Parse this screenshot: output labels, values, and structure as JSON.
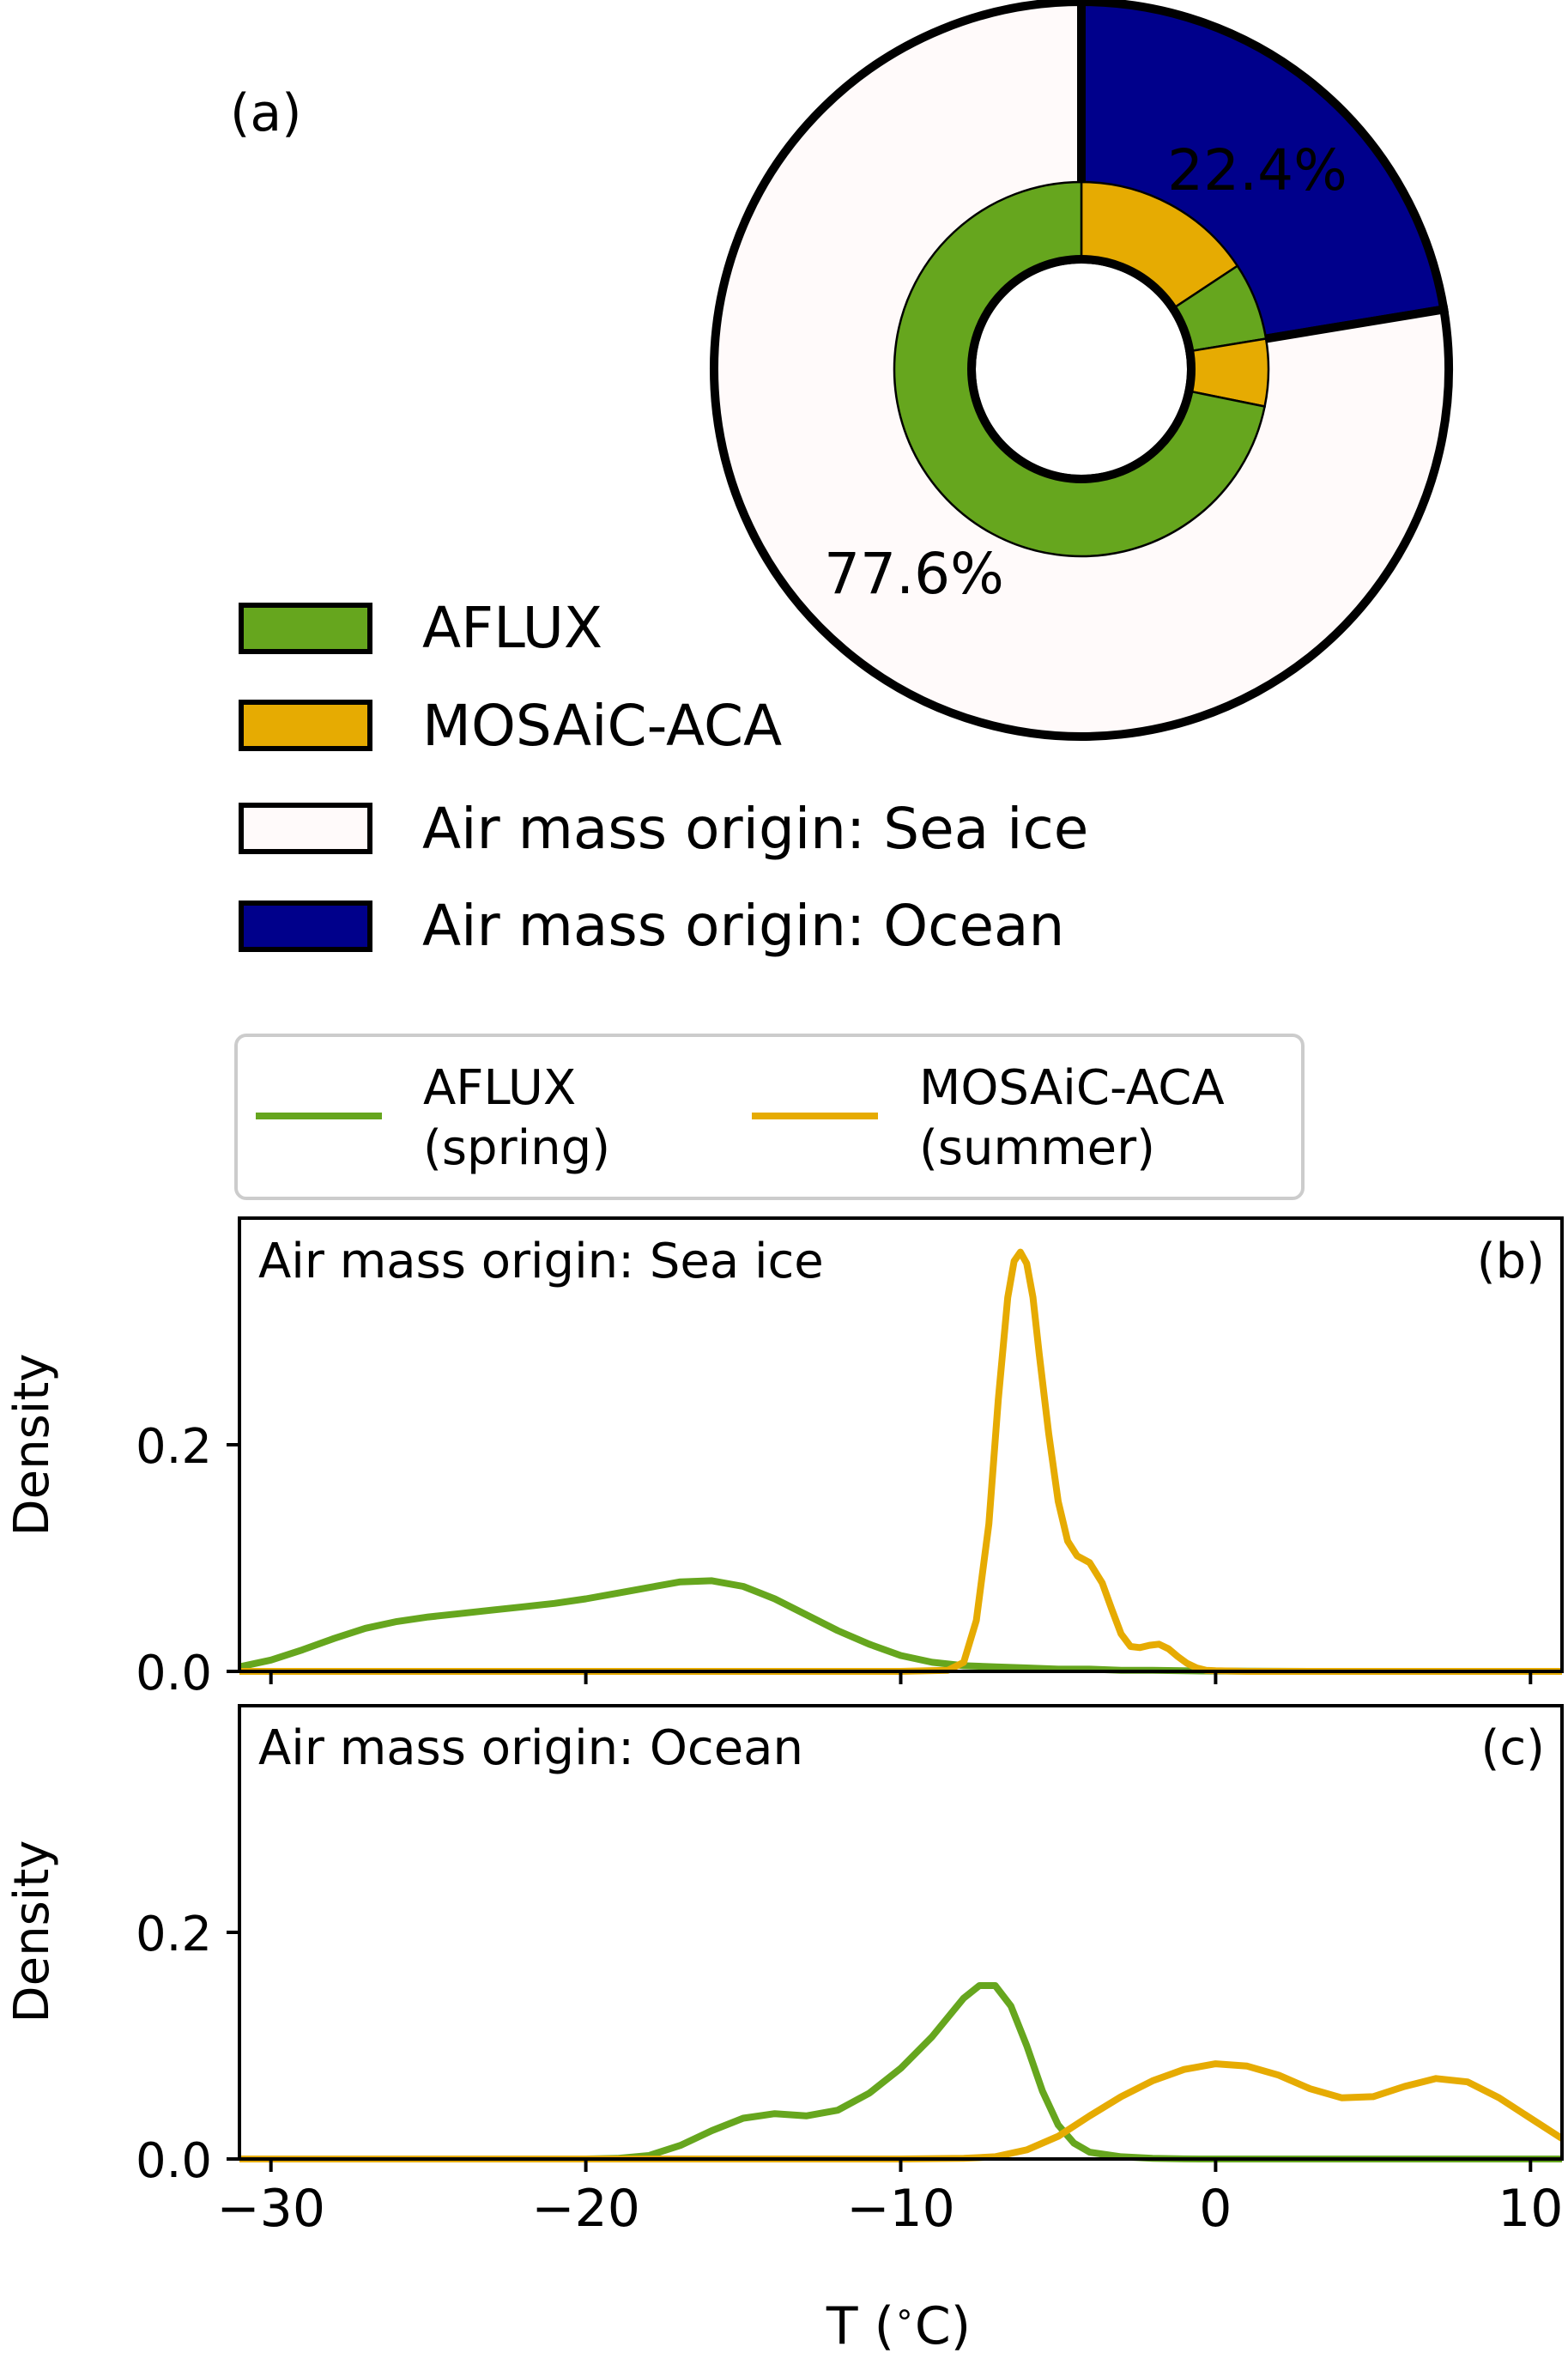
{
  "colors": {
    "aflux": "#66a61e",
    "mosaic": "#e6ab02",
    "sea_ice": "#fffafa",
    "ocean": "#00008b",
    "ocean_text": "#00008b",
    "frame": "#000000"
  },
  "chart_data": [
    {
      "type": "pie",
      "panel_label": "(a)",
      "outer_ring": {
        "slices": [
          {
            "label": "Air mass origin: Ocean",
            "value": 22.4,
            "pct_label": "22.4%",
            "color": "#00008b",
            "pct_color": "#ffffff"
          },
          {
            "label": "Air mass origin: Sea ice",
            "value": 77.6,
            "pct_label": "77.6%",
            "color": "#fffafa",
            "pct_color": "#00008b"
          }
        ]
      },
      "inner_ring": {
        "slices": [
          {
            "campaign": "MOSAiC-ACA",
            "origin": "Ocean",
            "value": 15.7,
            "color": "#e6ab02"
          },
          {
            "campaign": "AFLUX",
            "origin": "Ocean",
            "value": 6.7,
            "color": "#66a61e"
          },
          {
            "campaign": "MOSAiC-ACA",
            "origin": "Sea ice",
            "value": 5.8,
            "color": "#e6ab02"
          },
          {
            "campaign": "AFLUX",
            "origin": "Sea ice",
            "value": 71.8,
            "color": "#66a61e"
          }
        ]
      },
      "legend": [
        {
          "label": "AFLUX",
          "color": "#66a61e"
        },
        {
          "label": "MOSAiC-ACA",
          "color": "#e6ab02"
        },
        {
          "label": "Air mass origin: Sea ice",
          "color": "#fffafa"
        },
        {
          "label": "Air mass origin: Ocean",
          "color": "#00008b"
        }
      ]
    },
    {
      "type": "line",
      "legend": [
        {
          "line1": "AFLUX",
          "line2": "(spring)",
          "color": "#66a61e"
        },
        {
          "line1": "MOSAiC-ACA",
          "line2": "(summer)",
          "color": "#e6ab02"
        }
      ],
      "xlabel": "T ($^\\circ$C)",
      "xlabel_text": "T (",
      "xlabel_degree": "∘",
      "xlabel_unit": "C)",
      "xlim": [
        -31,
        11
      ],
      "xticks": [
        -30,
        -20,
        -10,
        0,
        10
      ],
      "xtick_labels": [
        "−30",
        "−20",
        "−10",
        "0",
        "10"
      ],
      "panels": [
        {
          "panel_label": "(b)",
          "title": "Air mass origin: Sea ice",
          "ylabel": "Density",
          "ylim": [
            0,
            0.4
          ],
          "yticks": [
            0.0,
            0.2
          ],
          "ytick_labels": [
            "0.0",
            "0.2"
          ],
          "series": [
            {
              "name": "AFLUX (spring)",
              "color": "#66a61e",
              "x": [
                -31,
                -30,
                -29,
                -28,
                -27,
                -26,
                -25,
                -24,
                -23,
                -22,
                -21,
                -20,
                -19,
                -18,
                -17,
                -16,
                -15,
                -14,
                -13,
                -12,
                -11,
                -10,
                -9,
                -8,
                -7,
                -6,
                -5,
                -4,
                -3,
                -2,
                -1,
                0,
                2,
                4,
                6,
                8,
                10,
                11
              ],
              "y": [
                0.004,
                0.01,
                0.019,
                0.029,
                0.038,
                0.044,
                0.048,
                0.051,
                0.054,
                0.057,
                0.06,
                0.064,
                0.069,
                0.074,
                0.079,
                0.08,
                0.075,
                0.064,
                0.05,
                0.036,
                0.024,
                0.014,
                0.008,
                0.005,
                0.004,
                0.003,
                0.002,
                0.002,
                0.001,
                0.001,
                0.0005,
                0.0003,
                0.0001,
                0,
                0,
                0,
                0,
                0
              ]
            },
            {
              "name": "MOSAiC-ACA (summer)",
              "color": "#e6ab02",
              "x": [
                -31,
                -10,
                -8.5,
                -8.0,
                -7.6,
                -7.2,
                -6.9,
                -6.6,
                -6.4,
                -6.2,
                -6.0,
                -5.8,
                -5.6,
                -5.3,
                -5.0,
                -4.7,
                -4.4,
                -4.0,
                -3.6,
                -3.3,
                -3.0,
                -2.7,
                -2.4,
                -2.1,
                -1.8,
                -1.5,
                -1.2,
                -0.9,
                -0.6,
                -0.3,
                0.0,
                1.0,
                5,
                11
              ],
              "y": [
                0,
                0,
                0.001,
                0.008,
                0.045,
                0.13,
                0.24,
                0.33,
                0.362,
                0.37,
                0.36,
                0.33,
                0.28,
                0.21,
                0.15,
                0.115,
                0.102,
                0.096,
                0.078,
                0.055,
                0.033,
                0.022,
                0.021,
                0.023,
                0.024,
                0.02,
                0.013,
                0.007,
                0.003,
                0.001,
                0.0005,
                0,
                0,
                0
              ]
            }
          ]
        },
        {
          "panel_label": "(c)",
          "title": "Air mass origin: Ocean",
          "ylabel": "Density",
          "ylim": [
            0,
            0.4
          ],
          "yticks": [
            0.0,
            0.2
          ],
          "ytick_labels": [
            "0.0",
            "0.2"
          ],
          "series": [
            {
              "name": "AFLUX (spring)",
              "color": "#66a61e",
              "x": [
                -31,
                -20,
                -19,
                -18,
                -17,
                -16,
                -15,
                -14,
                -13,
                -12,
                -11,
                -10,
                -9,
                -8.5,
                -8,
                -7.5,
                -7,
                -6.5,
                -6,
                -5.5,
                -5,
                -4.5,
                -4,
                -3,
                -2,
                -1,
                0,
                11
              ],
              "y": [
                0,
                0,
                0.0005,
                0.003,
                0.012,
                0.025,
                0.036,
                0.04,
                0.038,
                0.043,
                0.058,
                0.08,
                0.108,
                0.125,
                0.142,
                0.153,
                0.153,
                0.135,
                0.1,
                0.06,
                0.03,
                0.014,
                0.006,
                0.002,
                0.0005,
                0.0001,
                0,
                0
              ]
            },
            {
              "name": "MOSAiC-ACA (summer)",
              "color": "#e6ab02",
              "x": [
                -31,
                -10,
                -8,
                -7,
                -6,
                -5,
                -4,
                -3,
                -2,
                -1,
                0,
                1,
                2,
                3,
                4,
                5,
                6,
                7,
                8,
                9,
                10,
                11
              ],
              "y": [
                0,
                0,
                0.0005,
                0.002,
                0.008,
                0.02,
                0.038,
                0.055,
                0.069,
                0.079,
                0.084,
                0.082,
                0.074,
                0.062,
                0.054,
                0.055,
                0.064,
                0.071,
                0.068,
                0.054,
                0.036,
                0.018
              ]
            }
          ]
        }
      ]
    }
  ]
}
